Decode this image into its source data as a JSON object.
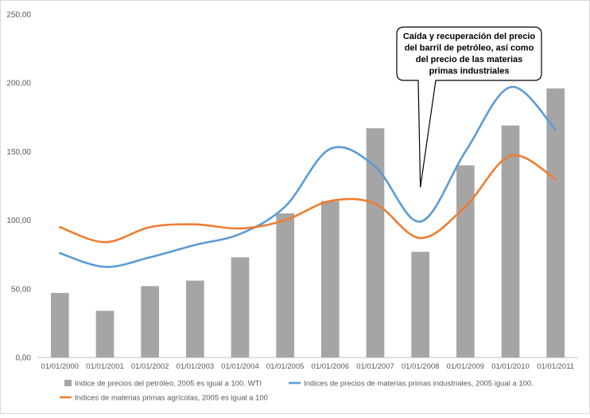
{
  "chart_data": {
    "type": "bar",
    "title": "",
    "xlabel": "",
    "ylabel": "",
    "ylim": [
      0,
      250
    ],
    "yticks": [
      "0,00",
      "50,00",
      "100,00",
      "150,00",
      "200,00",
      "250,00"
    ],
    "ytick_values": [
      0,
      50,
      100,
      150,
      200,
      250
    ],
    "grid": false,
    "legend_position": "bottom",
    "categories": [
      "01/01/2000",
      "01/01/2001",
      "01/01/2002",
      "01/01/2003",
      "01/01/2004",
      "01/01/2005",
      "01/01/2006",
      "01/01/2007",
      "01/01/2008",
      "01/01/2009",
      "01/01/2010",
      "01/01/2011"
    ],
    "series": [
      {
        "name": "Indice de precios del petróleo, 2005 es igual a 100. WTI",
        "type": "bar",
        "color": "#a5a5a5",
        "values": [
          47,
          34,
          52,
          56,
          73,
          105,
          114,
          167,
          77,
          140,
          169,
          196
        ]
      },
      {
        "name": "Indices  de precios de materias primas industriales, 2005 igual a 100.",
        "type": "line",
        "color": "#5b9bd5",
        "values": [
          76,
          66,
          73,
          82,
          90,
          110,
          152,
          139,
          99,
          150,
          197,
          166
        ]
      },
      {
        "name": "Indices de materias primas agrícolas, 2005 es igual a 100",
        "type": "line",
        "color": "#ed7d31",
        "values": [
          95,
          84,
          95,
          97,
          94,
          100,
          114,
          112,
          87,
          110,
          147,
          130
        ]
      }
    ],
    "annotation": {
      "lines": [
        "Caída y recuperación del precio",
        "del barril de petróleo, así como",
        "del precio de las materias",
        "primas industriales"
      ],
      "points_to": {
        "category": "01/01/2008",
        "value": 124
      }
    }
  }
}
